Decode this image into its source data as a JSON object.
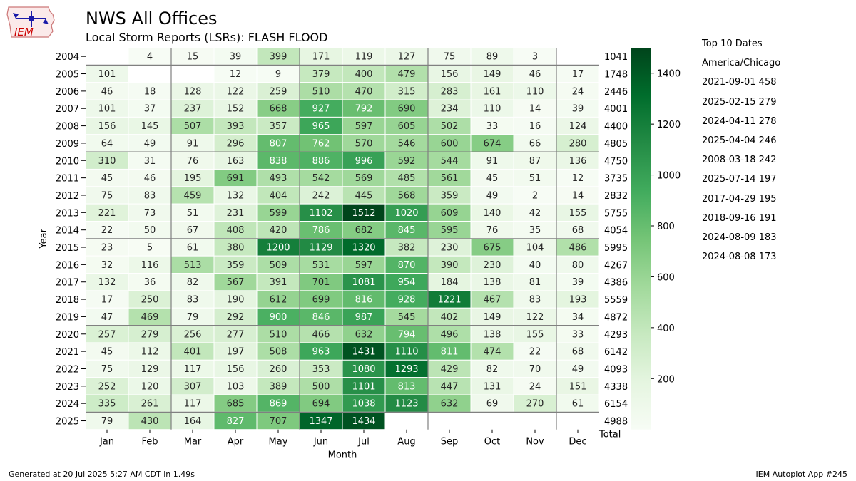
{
  "header": {
    "title": "NWS All Offices",
    "subtitle": "Local Storm Reports (LSRs): FLASH FLOOD"
  },
  "logo": {
    "text": "IEM",
    "icon": "iem-iowa-logo-icon",
    "color": "#cc0000"
  },
  "top10": {
    "heading": "Top 10 Dates",
    "timezone": "America/Chicago",
    "entries": [
      "2021-09-01 458",
      "2025-02-15 279",
      "2024-04-11 278",
      "2025-04-04 246",
      "2008-03-18 242",
      "2025-07-14 197",
      "2017-04-29 195",
      "2018-09-16 191",
      "2024-08-09 183",
      "2024-08-08 173"
    ]
  },
  "footer": {
    "left": "Generated at 20 Jul 2025 5:27 AM CDT in 1.49s",
    "right": "IEM Autoplot App #245"
  },
  "chart_data": {
    "type": "heatmap",
    "title": "NWS All Offices",
    "subtitle": "Local Storm Reports (LSRs): FLASH FLOOD",
    "xlabel": "Month",
    "ylabel": "Year",
    "total_label": "Total",
    "months": [
      "Jan",
      "Feb",
      "Mar",
      "Apr",
      "May",
      "Jun",
      "Jul",
      "Aug",
      "Sep",
      "Oct",
      "Nov",
      "Dec"
    ],
    "years": [
      "2004",
      "2005",
      "2006",
      "2007",
      "2008",
      "2009",
      "2010",
      "2011",
      "2012",
      "2013",
      "2014",
      "2015",
      "2016",
      "2017",
      "2018",
      "2019",
      "2020",
      "2021",
      "2022",
      "2023",
      "2024",
      "2025"
    ],
    "values": [
      [
        null,
        4,
        15,
        39,
        399,
        171,
        119,
        127,
        75,
        89,
        3,
        null
      ],
      [
        101,
        null,
        null,
        12,
        9,
        379,
        400,
        479,
        156,
        149,
        46,
        17
      ],
      [
        46,
        18,
        128,
        122,
        259,
        510,
        470,
        315,
        283,
        161,
        110,
        24
      ],
      [
        101,
        37,
        237,
        152,
        668,
        927,
        792,
        690,
        234,
        110,
        14,
        39
      ],
      [
        156,
        145,
        507,
        393,
        357,
        965,
        597,
        605,
        502,
        33,
        16,
        124
      ],
      [
        64,
        49,
        91,
        296,
        807,
        762,
        570,
        546,
        600,
        674,
        66,
        280
      ],
      [
        310,
        31,
        76,
        163,
        838,
        886,
        996,
        592,
        544,
        91,
        87,
        136
      ],
      [
        45,
        46,
        195,
        691,
        493,
        542,
        569,
        485,
        561,
        45,
        51,
        12
      ],
      [
        75,
        83,
        459,
        132,
        404,
        242,
        445,
        568,
        359,
        49,
        2,
        14
      ],
      [
        221,
        73,
        51,
        231,
        599,
        1102,
        1512,
        1020,
        609,
        140,
        42,
        155
      ],
      [
        22,
        50,
        67,
        408,
        420,
        786,
        682,
        845,
        595,
        76,
        35,
        68
      ],
      [
        23,
        5,
        61,
        380,
        1200,
        1129,
        1320,
        382,
        230,
        675,
        104,
        486
      ],
      [
        32,
        116,
        513,
        359,
        509,
        531,
        597,
        870,
        390,
        230,
        40,
        80
      ],
      [
        132,
        36,
        82,
        567,
        391,
        701,
        1081,
        954,
        184,
        138,
        81,
        39
      ],
      [
        17,
        250,
        83,
        190,
        612,
        699,
        816,
        928,
        1221,
        467,
        83,
        193
      ],
      [
        47,
        469,
        79,
        292,
        900,
        846,
        987,
        545,
        402,
        149,
        122,
        34
      ],
      [
        257,
        279,
        256,
        277,
        510,
        466,
        632,
        794,
        496,
        138,
        155,
        33
      ],
      [
        45,
        112,
        401,
        197,
        508,
        963,
        1431,
        1110,
        811,
        474,
        22,
        68
      ],
      [
        75,
        129,
        117,
        156,
        260,
        353,
        1080,
        1293,
        429,
        82,
        70,
        49
      ],
      [
        252,
        120,
        307,
        103,
        389,
        500,
        1101,
        813,
        447,
        131,
        24,
        151
      ],
      [
        335,
        261,
        117,
        685,
        869,
        694,
        1038,
        1123,
        632,
        69,
        270,
        61
      ],
      [
        79,
        430,
        164,
        827,
        707,
        1347,
        1434,
        null,
        null,
        null,
        null,
        null
      ]
    ],
    "totals": [
      1041,
      1748,
      2446,
      4001,
      4400,
      4805,
      4750,
      3735,
      2832,
      5755,
      4054,
      5995,
      4267,
      4386,
      5559,
      4872,
      4293,
      6142,
      4093,
      4338,
      6154,
      4988
    ],
    "colorbar": {
      "min": 0,
      "max": 1500,
      "ticks": [
        200,
        400,
        600,
        800,
        1000,
        1200,
        1400
      ],
      "colormap": "Greens"
    },
    "grid": true
  }
}
